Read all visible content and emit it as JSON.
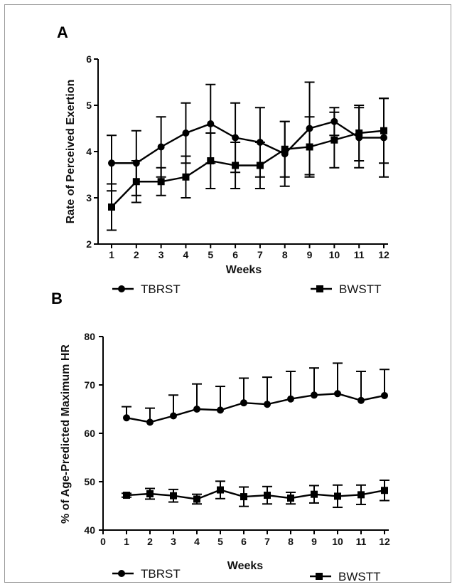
{
  "chart_data": [
    {
      "panel": "A",
      "type": "line",
      "xlabel": "Weeks",
      "ylabel": "Rate of Perceived Exertion",
      "ylim": [
        2,
        6
      ],
      "yticks": [
        "2",
        "3",
        "4",
        "5",
        "6"
      ],
      "x": [
        1,
        2,
        3,
        4,
        5,
        6,
        7,
        8,
        9,
        10,
        11,
        12
      ],
      "xticks": [
        "1",
        "2",
        "3",
        "4",
        "5",
        "6",
        "7",
        "8",
        "9",
        "10",
        "11",
        "12"
      ],
      "legend_position": "bottom",
      "series": [
        {
          "name": "TBRST",
          "marker": "circle",
          "values": [
            3.75,
            3.75,
            4.1,
            4.4,
            4.6,
            4.3,
            4.2,
            3.95,
            4.5,
            4.65,
            4.3,
            4.3
          ],
          "error": [
            0.6,
            0.7,
            0.65,
            0.65,
            0.85,
            0.75,
            0.75,
            0.7,
            1.0,
            0.3,
            0.65,
            0.85
          ]
        },
        {
          "name": "BWSTT",
          "marker": "square",
          "values": [
            2.8,
            3.35,
            3.35,
            3.45,
            3.8,
            3.7,
            3.7,
            4.05,
            4.1,
            4.25,
            4.4,
            4.45
          ],
          "error": [
            0.5,
            0.45,
            0.3,
            0.45,
            0.6,
            0.5,
            0.5,
            0.6,
            0.65,
            0.6,
            0.6,
            0.7
          ]
        }
      ]
    },
    {
      "panel": "B",
      "type": "line",
      "xlabel": "Weeks",
      "ylabel": "% of Age-Predicted Maximum HR",
      "ylim": [
        40,
        80
      ],
      "yticks": [
        "40",
        "50",
        "60",
        "70",
        "80"
      ],
      "xlim": [
        0,
        12
      ],
      "x": [
        1,
        2,
        3,
        4,
        5,
        6,
        7,
        8,
        9,
        10,
        11,
        12
      ],
      "xticks": [
        "0",
        "1",
        "2",
        "3",
        "4",
        "5",
        "6",
        "7",
        "8",
        "9",
        "10",
        "11",
        "12"
      ],
      "legend_position": "bottom",
      "series": [
        {
          "name": "TBRST",
          "marker": "circle",
          "values": [
            63.2,
            62.3,
            63.6,
            65.0,
            64.8,
            66.3,
            66.0,
            67.1,
            67.9,
            68.2,
            66.8,
            67.8
          ],
          "error_up": [
            2.3,
            2.9,
            4.3,
            5.2,
            4.9,
            5.1,
            5.6,
            5.7,
            5.6,
            6.3,
            6.0,
            5.4
          ],
          "error_down": [
            0,
            0,
            0,
            0,
            0,
            0,
            0,
            0,
            0,
            0,
            0,
            0
          ]
        },
        {
          "name": "BWSTT",
          "marker": "square",
          "values": [
            47.2,
            47.5,
            47.1,
            46.4,
            48.3,
            46.9,
            47.2,
            46.6,
            47.4,
            47.0,
            47.3,
            48.2
          ],
          "error": [
            0.4,
            1.1,
            1.3,
            1.0,
            1.8,
            2.0,
            1.8,
            1.2,
            1.8,
            2.3,
            2.0,
            2.1
          ]
        }
      ]
    }
  ]
}
